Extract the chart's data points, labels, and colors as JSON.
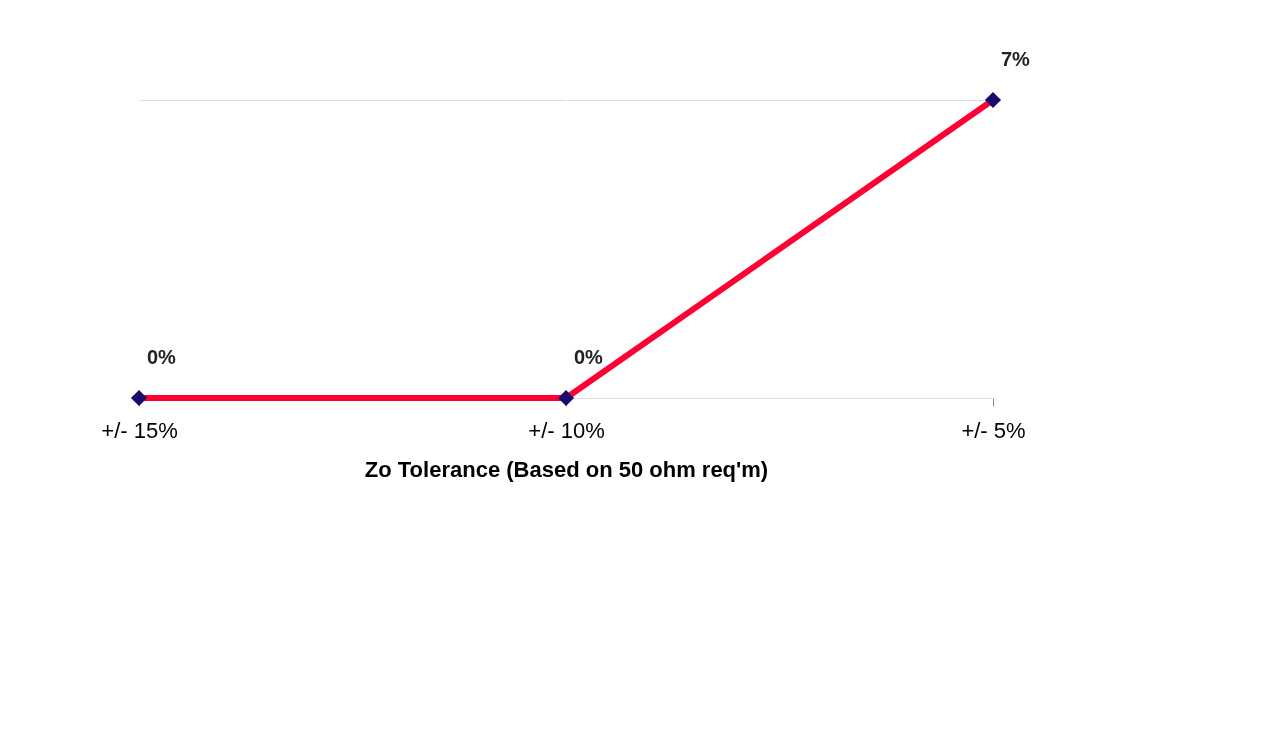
{
  "chart_data": {
    "type": "line",
    "xlabel": "Zo Tolerance (Based on 50 ohm req'm)",
    "categories": [
      "+/- 15%",
      "+/- 10%",
      "+/- 5%"
    ],
    "series": [
      {
        "color": "#ff0033",
        "values": [
          0,
          0,
          7
        ],
        "value_labels": [
          "0%",
          "0%",
          "7%"
        ]
      }
    ],
    "marker": "diamond",
    "line_style": "solid",
    "grid": "x",
    "legend": false
  }
}
